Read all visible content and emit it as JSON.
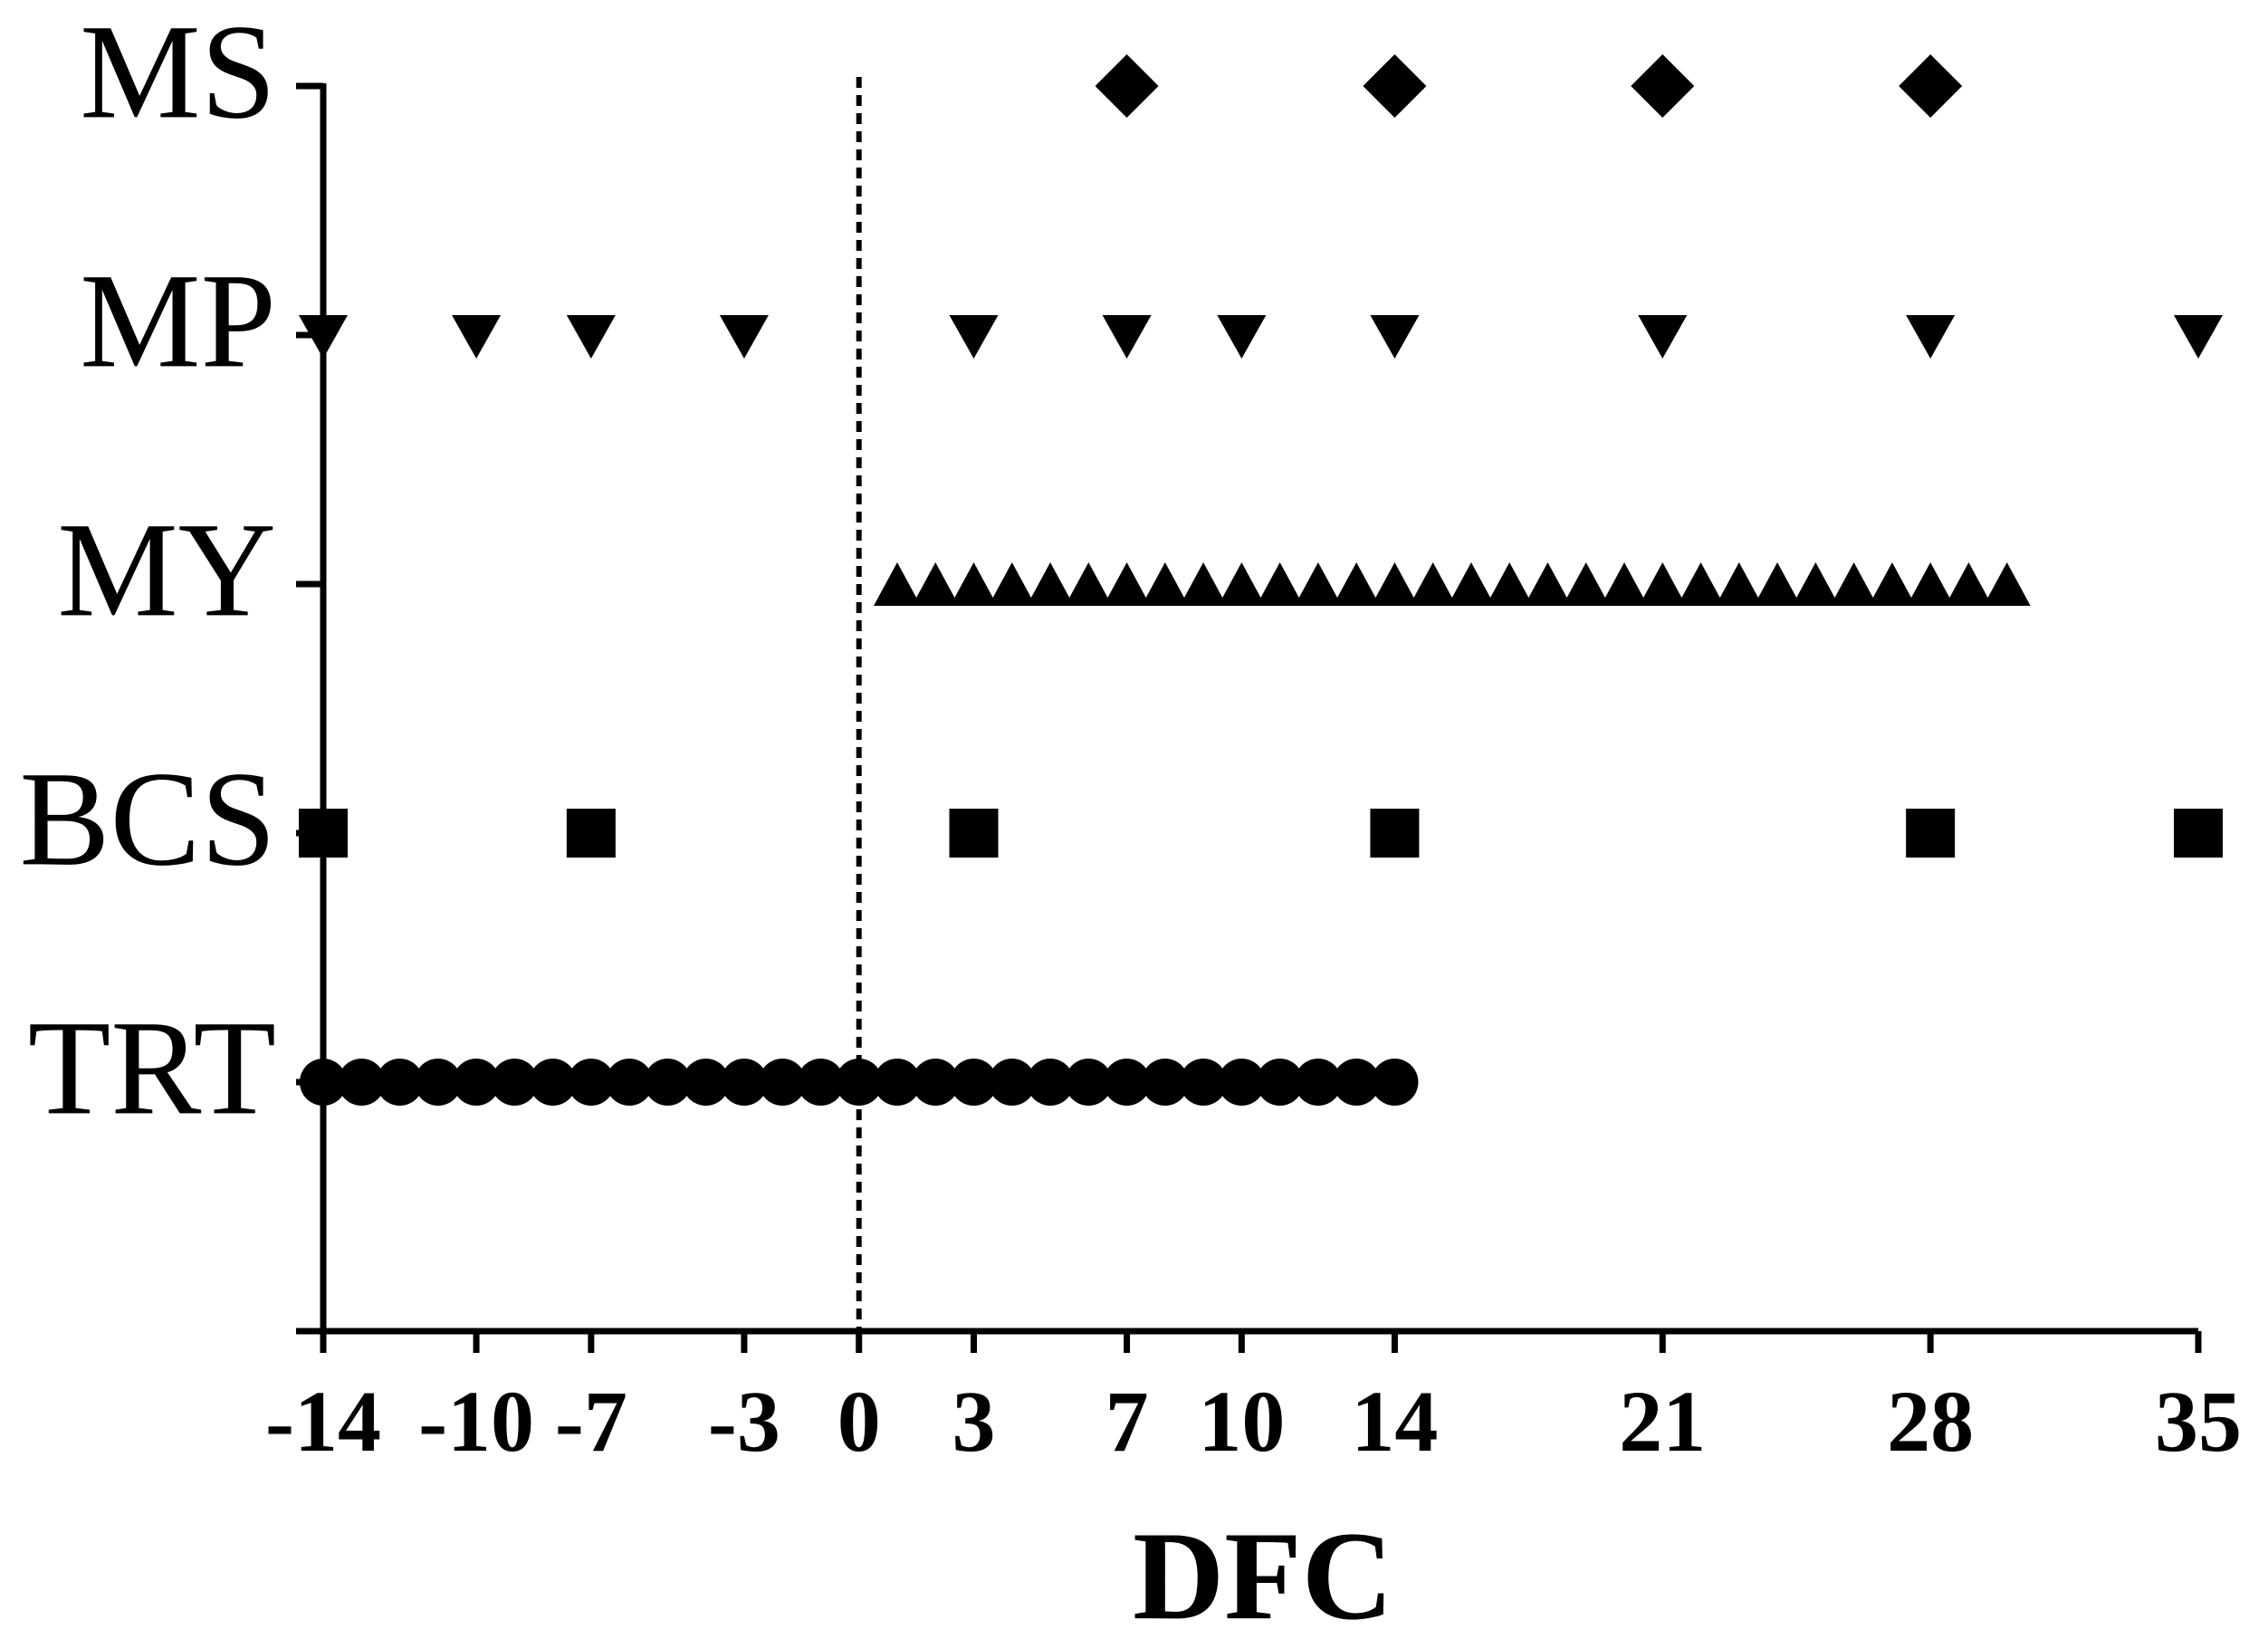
{
  "chart_data": {
    "type": "scatter",
    "x_label": "DFC",
    "xlim": [
      -14,
      35
    ],
    "xticks": [
      -14,
      -10,
      -7,
      -3,
      0,
      3,
      7,
      10,
      14,
      21,
      28,
      35
    ],
    "ylim": [
      0,
      5
    ],
    "yticks": [
      {
        "value": 1,
        "label": "TRT"
      },
      {
        "value": 2,
        "label": "BCS"
      },
      {
        "value": 3,
        "label": "MY"
      },
      {
        "value": 4,
        "label": "MP"
      },
      {
        "value": 5,
        "label": "MS"
      }
    ],
    "vline": 0,
    "series": [
      {
        "marker": "diamond",
        "color": "#000000",
        "x": [
          7,
          14,
          21,
          28
        ],
        "values": [
          5,
          5,
          5,
          5
        ]
      },
      {
        "marker": "triangle-down",
        "color": "#000000",
        "x": [
          -14,
          -10,
          -7,
          -3,
          3,
          7,
          10,
          14,
          21,
          28,
          35
        ],
        "values": [
          4,
          4,
          4,
          4,
          4,
          4,
          4,
          4,
          4,
          4,
          4
        ]
      },
      {
        "marker": "triangle-up",
        "color": "#000000",
        "x": [
          1,
          2,
          3,
          4,
          5,
          6,
          7,
          8,
          9,
          10,
          11,
          12,
          13,
          14,
          15,
          16,
          17,
          18,
          19,
          20,
          21,
          22,
          23,
          24,
          25,
          26,
          27,
          28,
          29,
          30
        ],
        "values": [
          3,
          3,
          3,
          3,
          3,
          3,
          3,
          3,
          3,
          3,
          3,
          3,
          3,
          3,
          3,
          3,
          3,
          3,
          3,
          3,
          3,
          3,
          3,
          3,
          3,
          3,
          3,
          3,
          3,
          3
        ]
      },
      {
        "marker": "square",
        "color": "#000000",
        "x": [
          -14,
          -7,
          3,
          14,
          28,
          35
        ],
        "values": [
          2,
          2,
          2,
          2,
          2,
          2
        ]
      },
      {
        "marker": "circle",
        "color": "#000000",
        "x": [
          -14,
          -13,
          -12,
          -11,
          -10,
          -9,
          -8,
          -7,
          -6,
          -5,
          -4,
          -3,
          -2,
          -1,
          0,
          1,
          2,
          3,
          4,
          5,
          6,
          7,
          8,
          9,
          10,
          11,
          12,
          13,
          14
        ],
        "values": [
          1,
          1,
          1,
          1,
          1,
          1,
          1,
          1,
          1,
          1,
          1,
          1,
          1,
          1,
          1,
          1,
          1,
          1,
          1,
          1,
          1,
          1,
          1,
          1,
          1,
          1,
          1,
          1,
          1
        ]
      }
    ]
  }
}
